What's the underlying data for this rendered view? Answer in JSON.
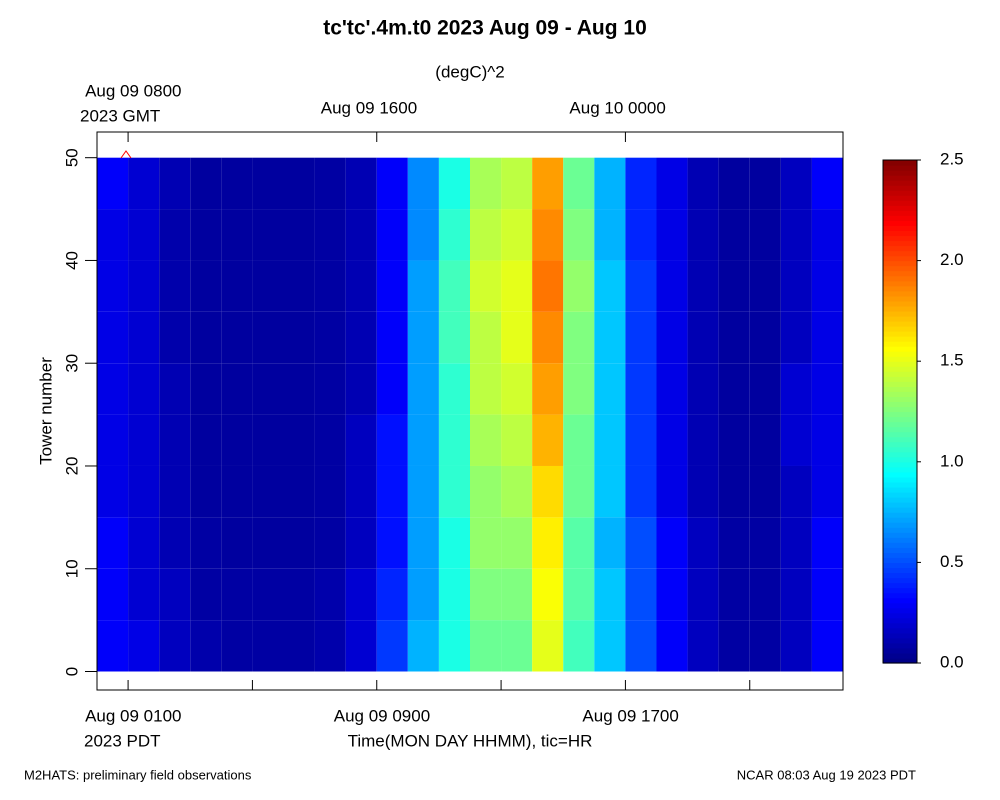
{
  "chart_data": {
    "type": "heatmap",
    "title": "tc'tc'.4m.t0 2023 Aug 09 - Aug 10",
    "colorbar_label": "(degC)^2",
    "ylabel": "Tower number",
    "xlabel": "Time(MON DAY HHMM), tic=HR",
    "x_timezone_label": "2023 PDT",
    "x2_timezone_label": "2023 GMT",
    "footer_left": "M2HATS: preliminary field observations",
    "footer_right": "NCAR 08:03 Aug 19 2023 PDT",
    "colormap": "jet",
    "xlim": [
      0,
      24
    ],
    "xticks": [
      {
        "value": 1,
        "label": "Aug 09 0100"
      },
      {
        "value": 9,
        "label": "Aug 09 0900"
      },
      {
        "value": 17,
        "label": "Aug 09 1700"
      }
    ],
    "x_minor_ticks": [
      5,
      13,
      21
    ],
    "x2ticks": [
      {
        "value": 1,
        "label": "Aug 09 0800"
      },
      {
        "value": 9,
        "label": "Aug 09 1600"
      },
      {
        "value": 17,
        "label": "Aug 10 0000"
      }
    ],
    "ylim": [
      -1.8,
      52.5
    ],
    "yticks": [
      0,
      10,
      20,
      30,
      40,
      50
    ],
    "zlim": [
      0,
      2.5
    ],
    "zticks": [
      {
        "value": 0,
        "label": "0.0"
      },
      {
        "value": 0.5,
        "label": "0.5"
      },
      {
        "value": 1,
        "label": "1.0"
      },
      {
        "value": 1.5,
        "label": "1.5"
      },
      {
        "value": 2,
        "label": "2.0"
      },
      {
        "value": 2.5,
        "label": "2.5"
      }
    ],
    "x": [
      0,
      1,
      2,
      3,
      4,
      5,
      6,
      7,
      8,
      9,
      10,
      11,
      12,
      13,
      14,
      15,
      16,
      17,
      18,
      19,
      20,
      21,
      22,
      23
    ],
    "y": [
      0,
      5,
      10,
      15,
      20,
      25,
      30,
      35,
      40,
      45
    ],
    "z": [
      [
        0.3,
        0.25,
        0.15,
        0.1,
        0.08,
        0.08,
        0.08,
        0.1,
        0.2,
        0.45,
        0.75,
        1.0,
        1.2,
        1.2,
        1.5,
        1.1,
        0.8,
        0.5,
        0.3,
        0.15,
        0.08,
        0.08,
        0.15,
        0.3
      ],
      [
        0.3,
        0.2,
        0.15,
        0.08,
        0.08,
        0.08,
        0.08,
        0.1,
        0.2,
        0.4,
        0.7,
        1.0,
        1.25,
        1.25,
        1.55,
        1.15,
        0.8,
        0.5,
        0.3,
        0.15,
        0.08,
        0.08,
        0.15,
        0.3
      ],
      [
        0.3,
        0.2,
        0.12,
        0.08,
        0.07,
        0.07,
        0.07,
        0.08,
        0.15,
        0.35,
        0.7,
        1.0,
        1.3,
        1.3,
        1.6,
        1.15,
        0.75,
        0.5,
        0.3,
        0.15,
        0.08,
        0.08,
        0.15,
        0.3
      ],
      [
        0.25,
        0.2,
        0.12,
        0.07,
        0.07,
        0.07,
        0.07,
        0.08,
        0.15,
        0.35,
        0.7,
        1.05,
        1.3,
        1.35,
        1.65,
        1.2,
        0.8,
        0.45,
        0.25,
        0.12,
        0.07,
        0.07,
        0.15,
        0.25
      ],
      [
        0.25,
        0.2,
        0.12,
        0.07,
        0.07,
        0.07,
        0.07,
        0.08,
        0.15,
        0.35,
        0.7,
        1.05,
        1.35,
        1.4,
        1.75,
        1.2,
        0.8,
        0.45,
        0.25,
        0.12,
        0.07,
        0.07,
        0.2,
        0.25
      ],
      [
        0.25,
        0.2,
        0.12,
        0.07,
        0.07,
        0.07,
        0.07,
        0.08,
        0.12,
        0.3,
        0.7,
        1.05,
        1.4,
        1.45,
        1.8,
        1.25,
        0.8,
        0.45,
        0.25,
        0.12,
        0.07,
        0.07,
        0.2,
        0.25
      ],
      [
        0.25,
        0.2,
        0.1,
        0.07,
        0.07,
        0.07,
        0.07,
        0.08,
        0.12,
        0.3,
        0.7,
        1.1,
        1.4,
        1.5,
        1.85,
        1.25,
        0.8,
        0.45,
        0.25,
        0.12,
        0.07,
        0.07,
        0.15,
        0.25
      ],
      [
        0.25,
        0.2,
        0.1,
        0.07,
        0.07,
        0.07,
        0.07,
        0.08,
        0.12,
        0.3,
        0.7,
        1.1,
        1.45,
        1.5,
        1.9,
        1.3,
        0.8,
        0.45,
        0.25,
        0.12,
        0.07,
        0.07,
        0.15,
        0.25
      ],
      [
        0.25,
        0.2,
        0.1,
        0.07,
        0.07,
        0.07,
        0.07,
        0.08,
        0.12,
        0.3,
        0.65,
        1.05,
        1.4,
        1.45,
        1.85,
        1.25,
        0.75,
        0.4,
        0.25,
        0.12,
        0.07,
        0.07,
        0.15,
        0.25
      ],
      [
        0.3,
        0.2,
        0.12,
        0.07,
        0.07,
        0.07,
        0.07,
        0.08,
        0.12,
        0.3,
        0.65,
        1.0,
        1.35,
        1.4,
        1.8,
        1.2,
        0.75,
        0.4,
        0.25,
        0.12,
        0.07,
        0.07,
        0.15,
        0.3
      ]
    ]
  }
}
